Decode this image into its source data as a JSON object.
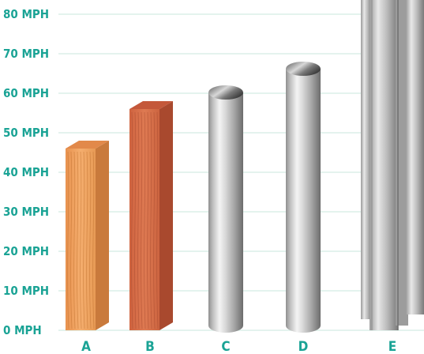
{
  "chart_data": {
    "type": "bar",
    "categories": [
      "A",
      "B",
      "C",
      "D",
      "E"
    ],
    "values": [
      48,
      58,
      62,
      68,
      88
    ],
    "ytick_labels": [
      "0 MPH",
      "10 MPH",
      "20 MPH",
      "30 MPH",
      "40 MPH",
      "50 MPH",
      "60 MPH",
      "70 MPH",
      "80 MPH"
    ],
    "ylim": [
      0,
      85
    ],
    "grid": true,
    "legend": "none"
  },
  "colors": {
    "label": "#1aa395",
    "grid": "#dbefe9",
    "wood_light": "#f2a35e",
    "wood_red": "#d9704a",
    "metal": "#b8b8b8"
  }
}
